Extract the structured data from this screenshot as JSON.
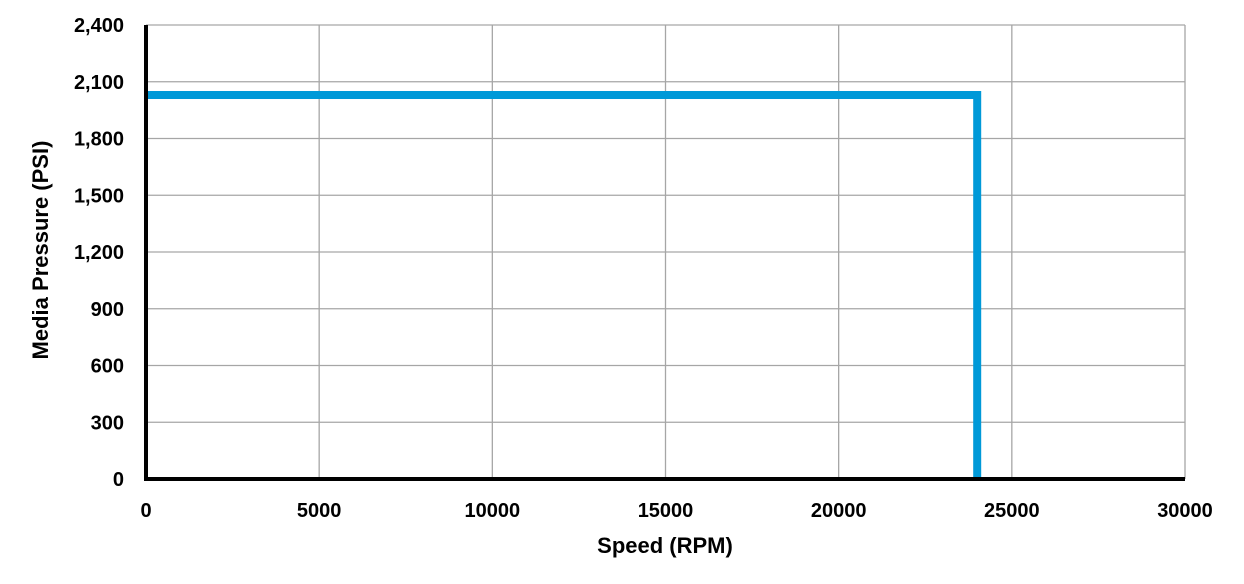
{
  "chart_data": {
    "type": "line",
    "title": "",
    "xlabel": "Speed (RPM)",
    "ylabel": "Media Pressure (PSI)",
    "xlim": [
      0,
      30000
    ],
    "ylim": [
      0,
      2400
    ],
    "x_ticks": [
      0,
      5000,
      10000,
      15000,
      20000,
      25000,
      30000
    ],
    "x_tick_labels": [
      "0",
      "5000",
      "10000",
      "15000",
      "20000",
      "25000",
      "30000"
    ],
    "y_ticks": [
      0,
      300,
      600,
      900,
      1200,
      1500,
      1800,
      2100,
      2400
    ],
    "y_tick_labels": [
      "0",
      "300",
      "600",
      "900",
      "1,200",
      "1,500",
      "1,800",
      "2,100",
      "2,400"
    ],
    "grid": true,
    "legend": "none",
    "series": [
      {
        "color": "#0099d8",
        "x": [
          0,
          24000,
          24000
        ],
        "y": [
          2030,
          2030,
          0
        ]
      }
    ]
  }
}
